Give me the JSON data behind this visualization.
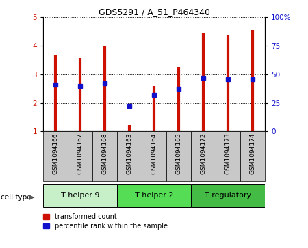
{
  "title": "GDS5291 / A_51_P464340",
  "samples": [
    "GSM1094166",
    "GSM1094167",
    "GSM1094168",
    "GSM1094163",
    "GSM1094164",
    "GSM1094165",
    "GSM1094172",
    "GSM1094173",
    "GSM1094174"
  ],
  "red_values": [
    3.7,
    3.57,
    4.0,
    1.22,
    2.6,
    3.27,
    4.45,
    4.38,
    4.55
  ],
  "blue_values": [
    2.63,
    2.6,
    2.68,
    1.9,
    2.28,
    2.5,
    2.87,
    2.82,
    2.82
  ],
  "ylim_left": [
    1,
    5
  ],
  "ylim_right": [
    0,
    100
  ],
  "yticks_left": [
    1,
    2,
    3,
    4,
    5
  ],
  "yticks_right": [
    0,
    25,
    50,
    75,
    100
  ],
  "ytick_labels_right": [
    "0",
    "25",
    "50",
    "75",
    "100%"
  ],
  "cell_type_groups": [
    {
      "label": "T helper 9",
      "indices": [
        0,
        1,
        2
      ],
      "color": "#c8f0c8"
    },
    {
      "label": "T helper 2",
      "indices": [
        3,
        4,
        5
      ],
      "color": "#55dd55"
    },
    {
      "label": "T regulatory",
      "indices": [
        6,
        7,
        8
      ],
      "color": "#44bb44"
    }
  ],
  "red_color": "#cc1100",
  "blue_color": "#1111cc",
  "blue_marker_size": 4,
  "tick_bg_color": "#c8c8c8",
  "legend_red_label": "transformed count",
  "legend_blue_label": "percentile rank within the sample",
  "cell_type_label": "cell type"
}
